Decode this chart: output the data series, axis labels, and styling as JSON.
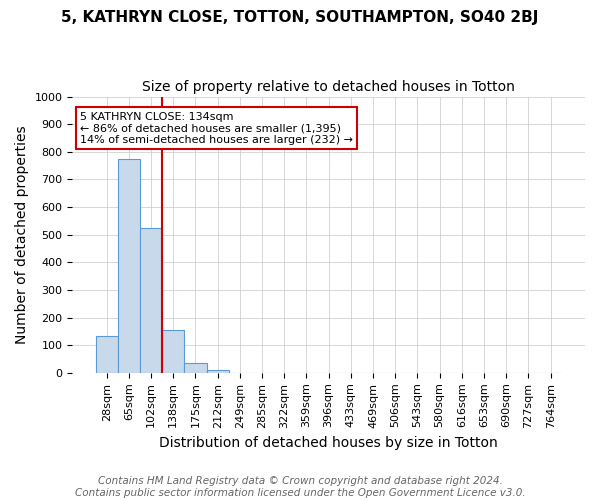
{
  "title": "5, KATHRYN CLOSE, TOTTON, SOUTHAMPTON, SO40 2BJ",
  "subtitle": "Size of property relative to detached houses in Totton",
  "xlabel": "Distribution of detached houses by size in Totton",
  "ylabel": "Number of detached properties",
  "bin_labels": [
    "28sqm",
    "65sqm",
    "102sqm",
    "138sqm",
    "175sqm",
    "212sqm",
    "249sqm",
    "285sqm",
    "322sqm",
    "359sqm",
    "396sqm",
    "433sqm",
    "469sqm",
    "506sqm",
    "543sqm",
    "580sqm",
    "616sqm",
    "653sqm",
    "690sqm",
    "727sqm",
    "764sqm"
  ],
  "bar_values": [
    134,
    775,
    525,
    155,
    37,
    11,
    0,
    0,
    0,
    0,
    0,
    0,
    0,
    0,
    0,
    0,
    0,
    0,
    0,
    0,
    0
  ],
  "bar_color": "#c9d9ec",
  "bar_edge_color": "#5b9bd5",
  "property_line_bin_index": 3,
  "property_line_color": "#cc0000",
  "annotation_line1": "5 KATHRYN CLOSE: 134sqm",
  "annotation_line2": "← 86% of detached houses are smaller (1,395)",
  "annotation_line3": "14% of semi-detached houses are larger (232) →",
  "annotation_box_color": "#cc0000",
  "ylim": [
    0,
    1000
  ],
  "yticks": [
    0,
    100,
    200,
    300,
    400,
    500,
    600,
    700,
    800,
    900,
    1000
  ],
  "footnote_line1": "Contains HM Land Registry data © Crown copyright and database right 2024.",
  "footnote_line2": "Contains public sector information licensed under the Open Government Licence v3.0.",
  "bg_color": "#ffffff",
  "grid_color": "#c8c8c8",
  "title_fontsize": 11,
  "subtitle_fontsize": 10,
  "axis_label_fontsize": 10,
  "tick_fontsize": 8,
  "footnote_fontsize": 7.5,
  "annotation_fontsize": 8
}
